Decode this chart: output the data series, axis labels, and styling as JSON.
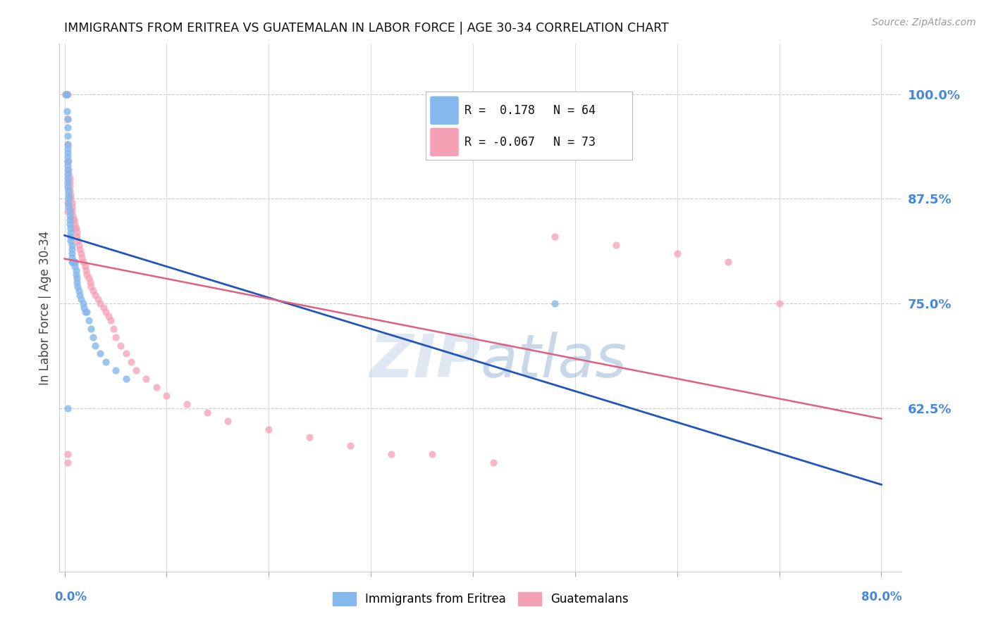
{
  "title": "IMMIGRANTS FROM ERITREA VS GUATEMALAN IN LABOR FORCE | AGE 30-34 CORRELATION CHART",
  "source": "Source: ZipAtlas.com",
  "ylabel": "In Labor Force | Age 30-34",
  "y_ticks": [
    0.625,
    0.75,
    0.875,
    1.0
  ],
  "y_tick_labels": [
    "62.5%",
    "75.0%",
    "87.5%",
    "100.0%"
  ],
  "eritrea_color": "#85b8ec",
  "guatemalan_color": "#f4a0b5",
  "eritrea_line_color": "#2255bb",
  "guatemalan_line_color": "#e06080",
  "watermark_zip": "ZIP",
  "watermark_atlas": "atlas",
  "background_color": "#ffffff",
  "grid_color": "#cccccc",
  "tick_color": "#4488dd",
  "title_color": "#111111",
  "R_eritrea": 0.178,
  "N_eritrea": 64,
  "R_guatemalan": -0.067,
  "N_guatemalan": 73,
  "eritrea_x": [
    0.001,
    0.002,
    0.002,
    0.003,
    0.003,
    0.003,
    0.003,
    0.003,
    0.003,
    0.003,
    0.003,
    0.003,
    0.003,
    0.003,
    0.003,
    0.003,
    0.003,
    0.004,
    0.004,
    0.004,
    0.004,
    0.004,
    0.005,
    0.005,
    0.005,
    0.005,
    0.006,
    0.006,
    0.006,
    0.006,
    0.007,
    0.007,
    0.007,
    0.007,
    0.007,
    0.008,
    0.008,
    0.009,
    0.009,
    0.01,
    0.01,
    0.01,
    0.011,
    0.011,
    0.012,
    0.012,
    0.013,
    0.014,
    0.015,
    0.016,
    0.018,
    0.019,
    0.02,
    0.022,
    0.024,
    0.026,
    0.028,
    0.03,
    0.035,
    0.04,
    0.05,
    0.06,
    0.48,
    0.003
  ],
  "eritrea_y": [
    1.0,
    1.0,
    0.98,
    0.97,
    0.96,
    0.95,
    0.94,
    0.935,
    0.93,
    0.925,
    0.92,
    0.915,
    0.91,
    0.905,
    0.9,
    0.895,
    0.89,
    0.885,
    0.88,
    0.875,
    0.87,
    0.865,
    0.86,
    0.855,
    0.85,
    0.845,
    0.84,
    0.835,
    0.83,
    0.825,
    0.82,
    0.815,
    0.81,
    0.805,
    0.8,
    0.8,
    0.8,
    0.8,
    0.8,
    0.8,
    0.8,
    0.795,
    0.79,
    0.785,
    0.78,
    0.775,
    0.77,
    0.765,
    0.76,
    0.755,
    0.75,
    0.745,
    0.74,
    0.74,
    0.73,
    0.72,
    0.71,
    0.7,
    0.69,
    0.68,
    0.67,
    0.66,
    0.75,
    0.625
  ],
  "guatemalan_x": [
    0.001,
    0.002,
    0.003,
    0.003,
    0.003,
    0.003,
    0.004,
    0.004,
    0.004,
    0.005,
    0.005,
    0.005,
    0.005,
    0.006,
    0.006,
    0.007,
    0.007,
    0.007,
    0.008,
    0.008,
    0.009,
    0.01,
    0.01,
    0.011,
    0.012,
    0.012,
    0.013,
    0.014,
    0.015,
    0.016,
    0.017,
    0.018,
    0.02,
    0.021,
    0.022,
    0.024,
    0.025,
    0.026,
    0.028,
    0.03,
    0.033,
    0.035,
    0.038,
    0.04,
    0.043,
    0.045,
    0.048,
    0.05,
    0.055,
    0.06,
    0.065,
    0.07,
    0.08,
    0.09,
    0.1,
    0.12,
    0.14,
    0.16,
    0.2,
    0.24,
    0.28,
    0.32,
    0.36,
    0.42,
    0.48,
    0.54,
    0.6,
    0.65,
    0.7,
    0.003,
    0.003,
    0.003,
    0.003
  ],
  "guatemalan_y": [
    1.0,
    1.0,
    1.0,
    0.97,
    0.94,
    0.92,
    0.92,
    0.91,
    0.905,
    0.9,
    0.895,
    0.89,
    0.885,
    0.88,
    0.875,
    0.87,
    0.865,
    0.86,
    0.855,
    0.85,
    0.85,
    0.845,
    0.84,
    0.84,
    0.835,
    0.83,
    0.825,
    0.82,
    0.815,
    0.81,
    0.805,
    0.8,
    0.795,
    0.79,
    0.785,
    0.78,
    0.775,
    0.77,
    0.765,
    0.76,
    0.755,
    0.75,
    0.745,
    0.74,
    0.735,
    0.73,
    0.72,
    0.71,
    0.7,
    0.69,
    0.68,
    0.67,
    0.66,
    0.65,
    0.64,
    0.63,
    0.62,
    0.61,
    0.6,
    0.59,
    0.58,
    0.57,
    0.57,
    0.56,
    0.83,
    0.82,
    0.81,
    0.8,
    0.75,
    0.87,
    0.86,
    0.57,
    0.56
  ]
}
